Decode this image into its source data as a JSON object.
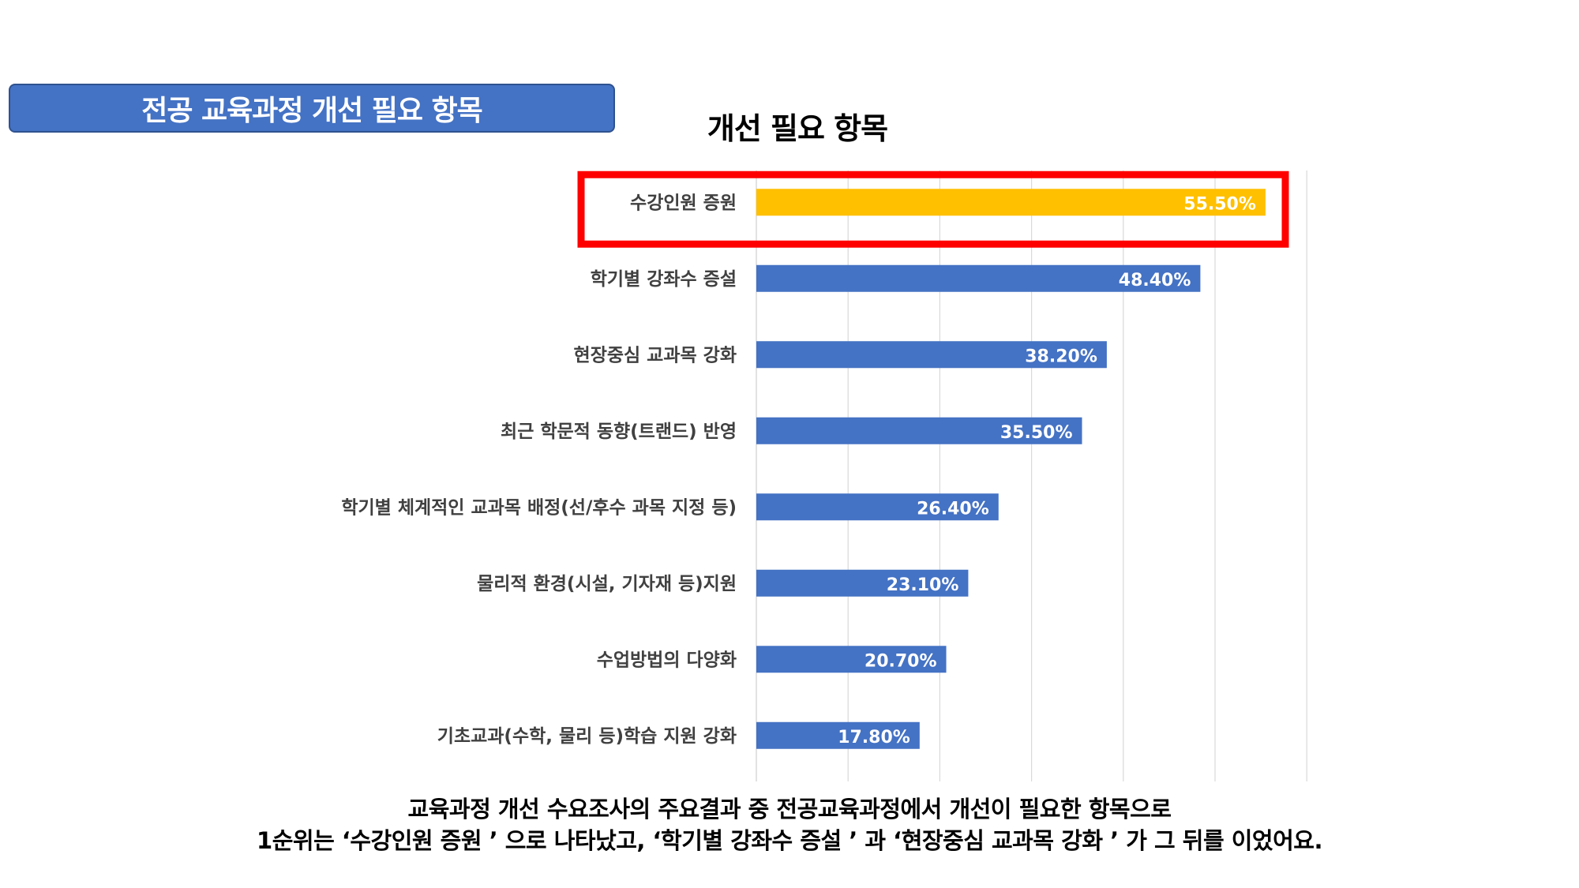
{
  "banner": {
    "title": "전공 교육과정 개선 필요 항목"
  },
  "colors": {
    "banner_bg": "#4472C4",
    "bar_default": "#4472C4",
    "bar_highlight": "#FFC000",
    "highlight_box": "#FF0000",
    "gridline": "#D9D9D9",
    "category_text": "#404040",
    "value_text": "#FFFFFF"
  },
  "chart_data": {
    "type": "bar",
    "orientation": "horizontal",
    "title": "개선 필요 항목",
    "categories": [
      "수강인원 증원",
      "학기별 강좌수 증설",
      "현장중심 교과목 강화",
      "최근 학문적 동향(트랜드) 반영",
      "학기별 체계적인 교과목 배정(선/후수 과목 지정 등)",
      "물리적 환경(시설, 기자재 등)지원",
      "수업방법의 다양화",
      "기초교과(수학, 물리 등)학습 지원 강화"
    ],
    "values": [
      55.5,
      48.4,
      38.2,
      35.5,
      26.4,
      23.1,
      20.7,
      17.8
    ],
    "value_labels": [
      "55.50%",
      "48.40%",
      "38.20%",
      "35.50%",
      "26.40%",
      "23.10%",
      "20.70%",
      "17.80%"
    ],
    "highlighted_category": "수강인원 증원",
    "xlim": [
      0,
      60
    ],
    "grid": true,
    "axis_tick_labels_shown": false,
    "legend": "none"
  },
  "caption": {
    "line1": "교육과정 개선 수요조사의 주요결과 중 전공교육과정에서 개선이 필요한 항목으로",
    "line2": "1순위는 ‘수강인원 증원 ’ 으로 나타났고, ‘학기별 강좌수 증설 ’ 과 ‘현장중심 교과목 강화 ’ 가 그 뒤를 이었어요."
  }
}
